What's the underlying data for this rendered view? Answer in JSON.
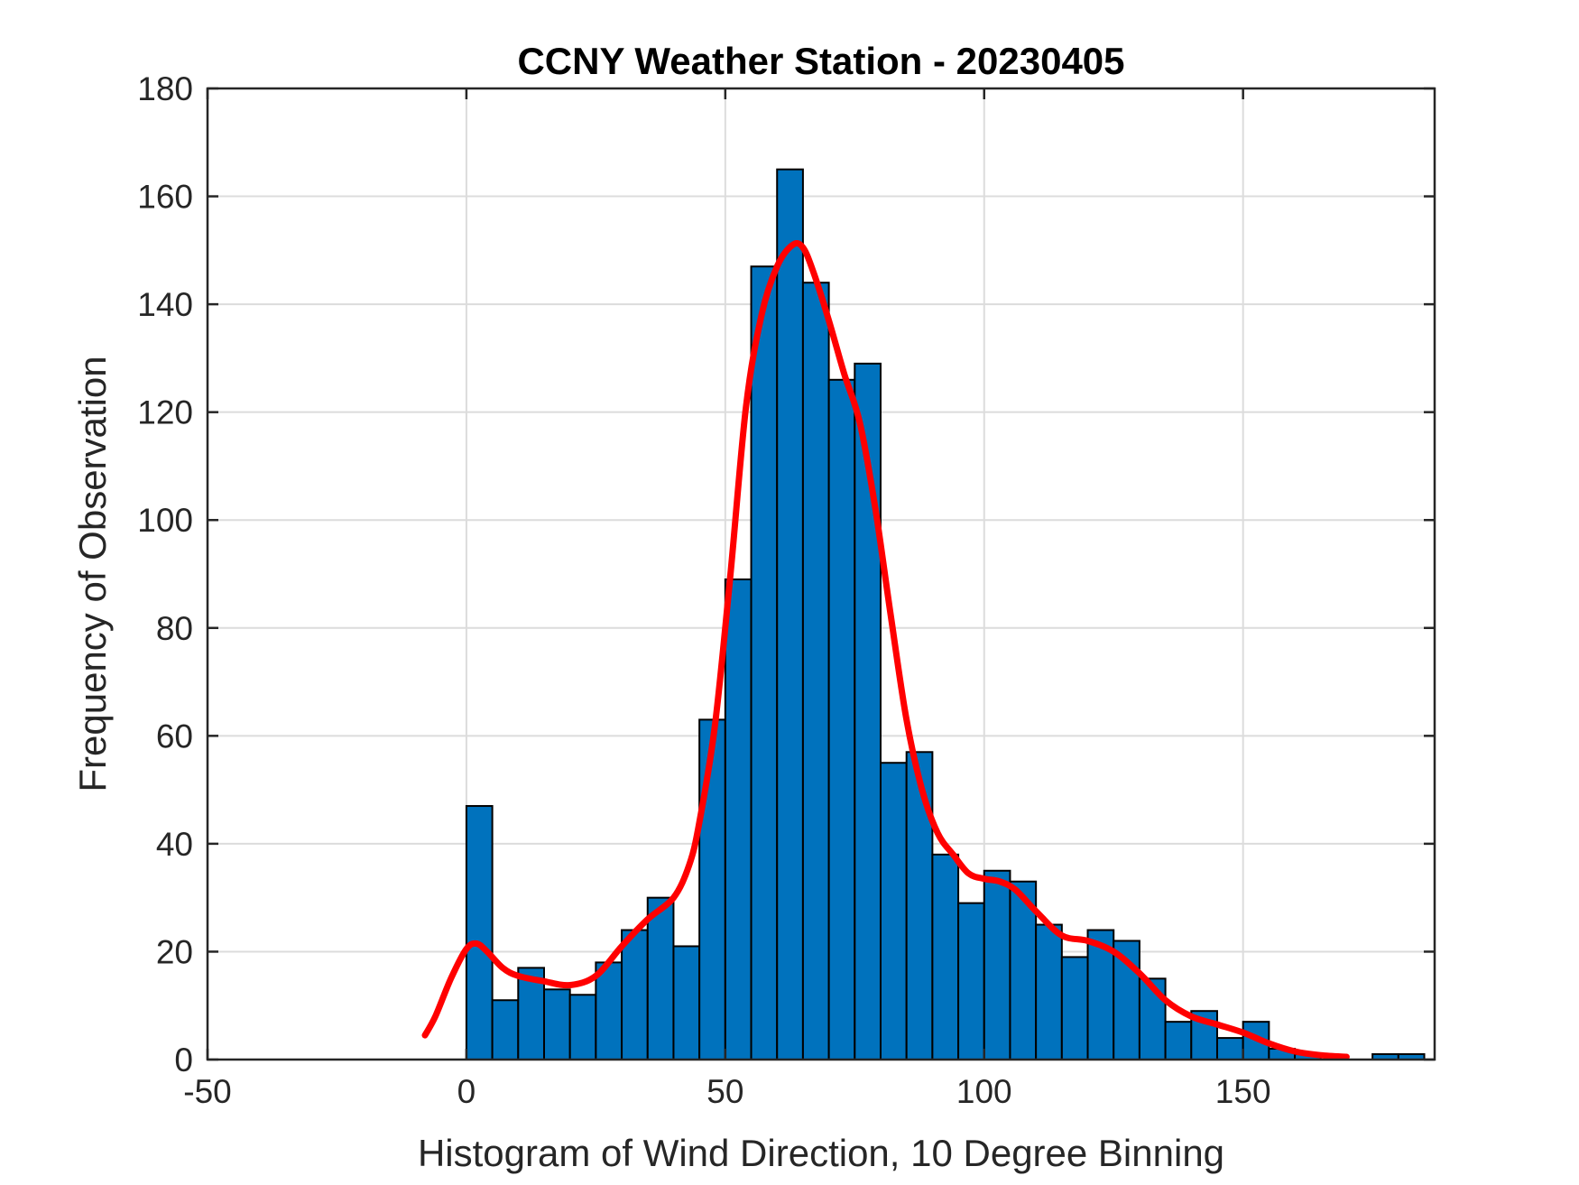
{
  "chart_data": {
    "type": "bar",
    "title": "CCNY Weather Station - 20230405",
    "xlabel": "Histogram of Wind Direction, 10 Degree Binning",
    "ylabel": "Frequency of Observation",
    "xlim": [
      -50,
      187
    ],
    "ylim": [
      0,
      180
    ],
    "xticks": [
      -50,
      0,
      50,
      100,
      150
    ],
    "yticks": [
      0,
      20,
      40,
      60,
      80,
      100,
      120,
      140,
      160,
      180
    ],
    "grid": true,
    "bin_width": 5,
    "bar_color": "#0072BD",
    "curve_color": "#FF0000",
    "bins": [
      {
        "x0": 0,
        "count": 47
      },
      {
        "x0": 5,
        "count": 11
      },
      {
        "x0": 10,
        "count": 17
      },
      {
        "x0": 15,
        "count": 13
      },
      {
        "x0": 20,
        "count": 12
      },
      {
        "x0": 25,
        "count": 18
      },
      {
        "x0": 30,
        "count": 24
      },
      {
        "x0": 35,
        "count": 30
      },
      {
        "x0": 40,
        "count": 21
      },
      {
        "x0": 45,
        "count": 63
      },
      {
        "x0": 50,
        "count": 89
      },
      {
        "x0": 55,
        "count": 147
      },
      {
        "x0": 60,
        "count": 165
      },
      {
        "x0": 65,
        "count": 144
      },
      {
        "x0": 70,
        "count": 126
      },
      {
        "x0": 75,
        "count": 129
      },
      {
        "x0": 80,
        "count": 55
      },
      {
        "x0": 85,
        "count": 57
      },
      {
        "x0": 90,
        "count": 38
      },
      {
        "x0": 95,
        "count": 29
      },
      {
        "x0": 100,
        "count": 35
      },
      {
        "x0": 105,
        "count": 33
      },
      {
        "x0": 110,
        "count": 25
      },
      {
        "x0": 115,
        "count": 19
      },
      {
        "x0": 120,
        "count": 24
      },
      {
        "x0": 125,
        "count": 22
      },
      {
        "x0": 130,
        "count": 15
      },
      {
        "x0": 135,
        "count": 7
      },
      {
        "x0": 140,
        "count": 9
      },
      {
        "x0": 145,
        "count": 4
      },
      {
        "x0": 150,
        "count": 7
      },
      {
        "x0": 155,
        "count": 2
      },
      {
        "x0": 160,
        "count": 1
      },
      {
        "x0": 165,
        "count": 0
      },
      {
        "x0": 170,
        "count": 0
      },
      {
        "x0": 175,
        "count": 1
      },
      {
        "x0": 180,
        "count": 1
      }
    ],
    "curve": {
      "x": [
        -8,
        -6,
        -3,
        0,
        2,
        4,
        7,
        10,
        15,
        20,
        25,
        30,
        35,
        40,
        43,
        45,
        48,
        51,
        54,
        57,
        60,
        63,
        65,
        67,
        70,
        73,
        76,
        79,
        82,
        85,
        88,
        91,
        94,
        97,
        100,
        103,
        106,
        110,
        115,
        120,
        125,
        130,
        135,
        140,
        145,
        150,
        155,
        160,
        165,
        170
      ],
      "y": [
        4.5,
        8,
        15,
        20.5,
        21.5,
        20,
        17,
        15.5,
        14.5,
        13.8,
        15.5,
        21,
        26,
        30,
        36,
        44,
        62,
        90,
        121,
        138,
        147,
        151,
        150.5,
        146,
        137,
        127,
        118,
        102,
        82,
        63,
        50,
        42,
        38,
        34.5,
        33.5,
        33,
        31.5,
        27.5,
        23,
        22,
        20,
        16,
        11,
        8,
        6.5,
        5,
        3,
        1.5,
        0.8,
        0.5
      ]
    }
  }
}
